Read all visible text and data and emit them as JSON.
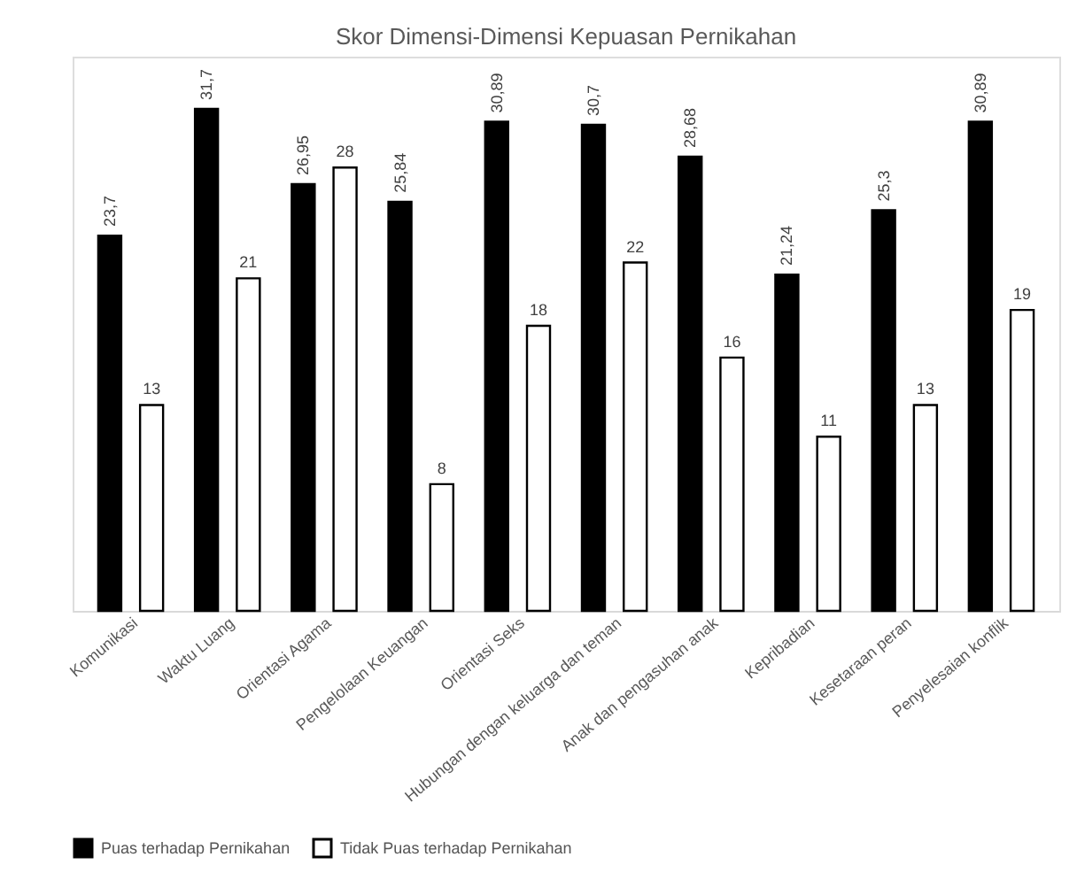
{
  "chart_data": {
    "type": "bar",
    "title": "Skor Dimensi-Dimensi Kepuasan Pernikahan",
    "categories": [
      "Komunikasi",
      "Waktu Luang",
      "Orientasi Agama",
      "Pengelolaan Keuangan",
      "Orientasi Seks",
      "Hubungan dengan keluarga dan teman",
      "Anak dan pengasuhan anak",
      "Kepribadian",
      "Kesetaraan peran",
      "Penyelesaian konflik"
    ],
    "series": [
      {
        "name": "Puas terhadap Pernikahan",
        "color": "#000000",
        "values": [
          23.7,
          31.7,
          26.95,
          25.84,
          30.89,
          30.7,
          28.68,
          21.24,
          25.3,
          30.89
        ],
        "value_labels": [
          "23,7",
          "31,7",
          "26,95",
          "25,84",
          "30,89",
          "30,7",
          "28,68",
          "21,24",
          "25,3",
          "30,89"
        ]
      },
      {
        "name": "Tidak Puas terhadap Pernikahan",
        "color": "#ffffff",
        "values": [
          13,
          21,
          28,
          8,
          18,
          22,
          16,
          11,
          13,
          19
        ],
        "value_labels": [
          "13",
          "21",
          "28",
          "8",
          "18",
          "22",
          "16",
          "11",
          "13",
          "19"
        ]
      }
    ],
    "legend": "bottom",
    "grid": false
  }
}
